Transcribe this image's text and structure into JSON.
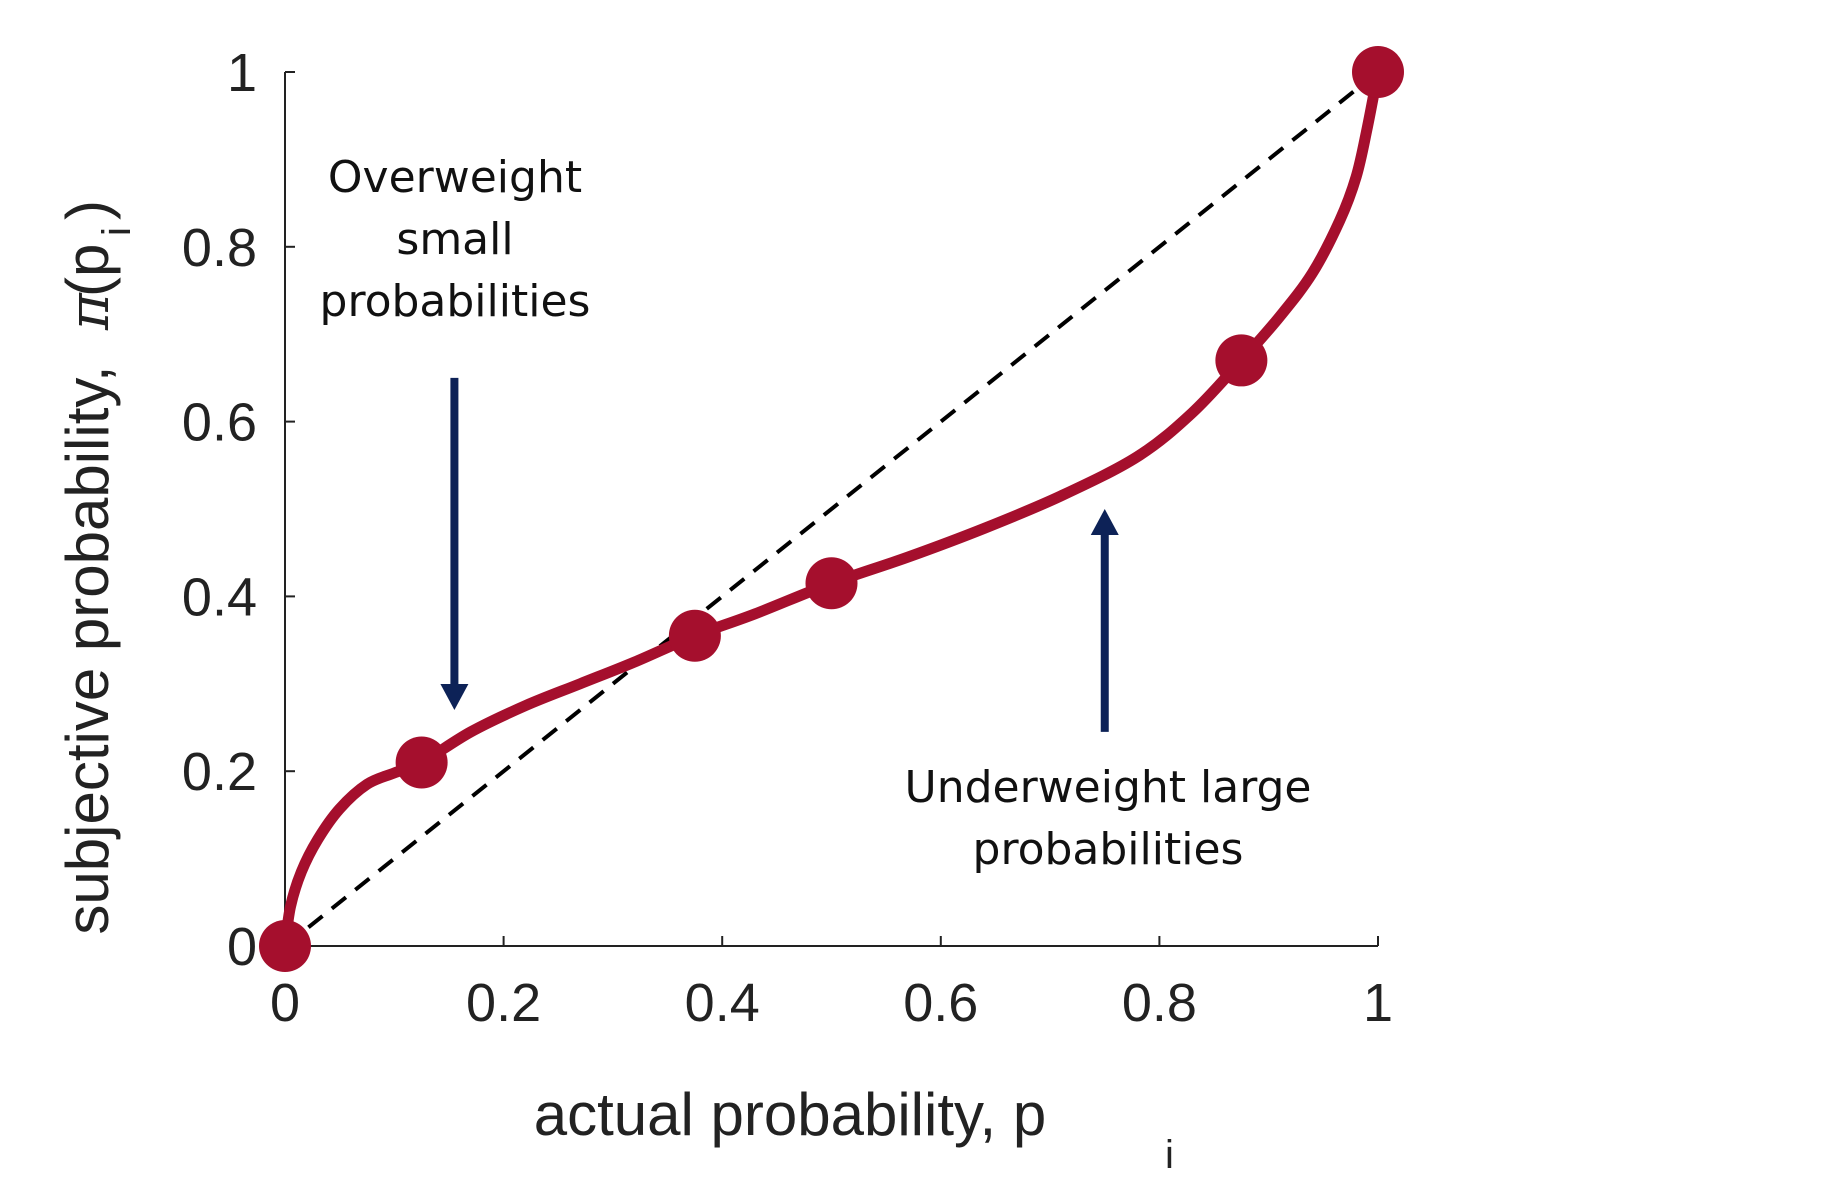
{
  "chart_data": {
    "type": "line",
    "xlabel": "actual probability, p",
    "xlabel_sub": "i",
    "ylabel": "subjective probability,",
    "ylabel_symbol": "π",
    "ylabel_arg": "(p",
    "ylabel_sub": "i",
    "ylabel_close": ")",
    "xlim": [
      0,
      1
    ],
    "ylim": [
      0,
      1
    ],
    "x_ticks": [
      0,
      0.2,
      0.4,
      0.6,
      0.8,
      1
    ],
    "x_tick_labels": [
      "0",
      "0.2",
      "0.4",
      "0.6",
      "0.8",
      "1"
    ],
    "y_ticks": [
      0,
      0.2,
      0.4,
      0.6,
      0.8,
      1
    ],
    "y_tick_labels": [
      "0",
      "0.2",
      "0.4",
      "0.6",
      "0.8",
      "1"
    ],
    "grid": false,
    "series": [
      {
        "style": "dashed",
        "color": "#000000",
        "x": [
          0,
          1
        ],
        "y": [
          0,
          1
        ]
      },
      {
        "style": "solid",
        "color": "#A50F2D",
        "marker_x": [
          0,
          0.125,
          0.375,
          0.5,
          0.875,
          1
        ],
        "marker_y": [
          0,
          0.21,
          0.355,
          0.415,
          0.67,
          1
        ],
        "curve_x": [
          0,
          0.005,
          0.015,
          0.03,
          0.05,
          0.075,
          0.1,
          0.125,
          0.17,
          0.22,
          0.27,
          0.32,
          0.375,
          0.43,
          0.5,
          0.57,
          0.64,
          0.71,
          0.78,
          0.83,
          0.875,
          0.91,
          0.94,
          0.965,
          0.98,
          0.99,
          1
        ],
        "curve_y": [
          0,
          0.045,
          0.085,
          0.122,
          0.157,
          0.185,
          0.198,
          0.21,
          0.245,
          0.275,
          0.3,
          0.325,
          0.355,
          0.38,
          0.415,
          0.445,
          0.478,
          0.515,
          0.56,
          0.61,
          0.67,
          0.72,
          0.77,
          0.83,
          0.88,
          0.935,
          1
        ]
      }
    ],
    "annotations": [
      {
        "lines": [
          "Overweight",
          "small",
          "probabilities"
        ],
        "arrow": "down",
        "arrow_x": 0.155,
        "arrow_from_y": 0.65,
        "arrow_to_y": 0.27,
        "color": "#0D2257"
      },
      {
        "lines": [
          "Underweight large",
          "probabilities"
        ],
        "arrow": "up",
        "arrow_x": 0.75,
        "arrow_from_y": 0.245,
        "arrow_to_y": 0.5,
        "color": "#0D2257"
      }
    ]
  }
}
